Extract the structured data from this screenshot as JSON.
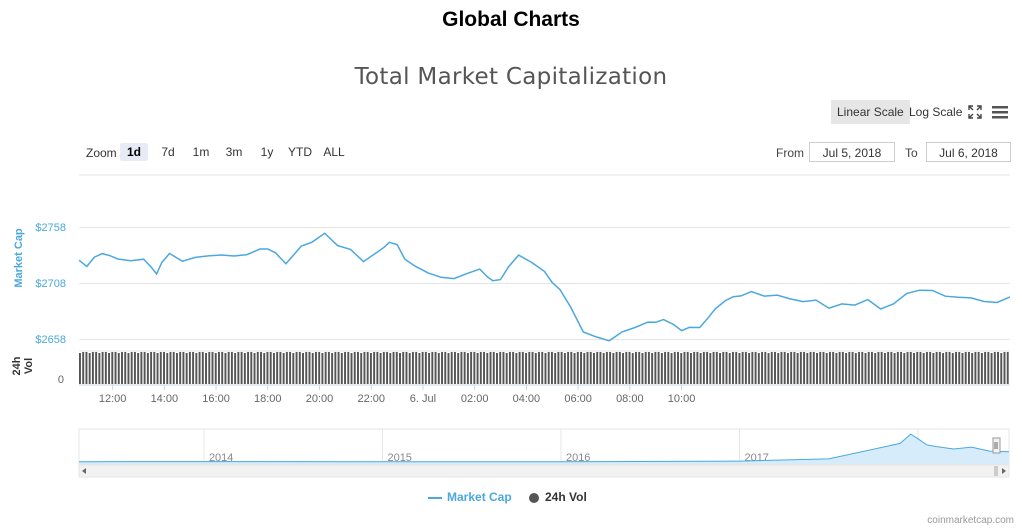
{
  "page_title": "Global Charts",
  "chart_title": "Total Market Capitalization",
  "scale": {
    "linear": "Linear Scale",
    "log": "Log Scale",
    "active": "linear"
  },
  "zoom": {
    "label": "Zoom",
    "options": [
      "1d",
      "7d",
      "1m",
      "3m",
      "1y",
      "YTD",
      "ALL"
    ],
    "active": "1d"
  },
  "range": {
    "from_label": "From",
    "from_value": "Jul 5, 2018",
    "to_label": "To",
    "to_value": "Jul 6, 2018"
  },
  "legend": {
    "market_cap": "Market Cap",
    "vol": "24h Vol"
  },
  "credit": "coinmarketcap.com",
  "colors": {
    "series": "#4ba8df",
    "volume": "#555555",
    "active_zoom_bg": "#e6ebf5",
    "scale_active_bg": "#e6e6e6"
  },
  "icons": [
    "fullscreen-icon",
    "hamburger-menu-icon"
  ],
  "chart_data": {
    "type": "line",
    "x_tick_labels": [
      "12:00",
      "14:00",
      "16:00",
      "18:00",
      "20:00",
      "22:00",
      "6. Jul",
      "02:00",
      "04:00",
      "06:00",
      "08:00",
      "10:00"
    ],
    "series": [
      {
        "name": "Market Cap",
        "y_axis_label": "Market Cap",
        "y_tick_labels": [
          "$2658",
          "$2708",
          "$2758"
        ],
        "ylim": [
          2658,
          2758
        ],
        "x_hours": [
          0,
          0.3,
          0.6,
          0.9,
          1.2,
          1.5,
          2.0,
          2.5,
          2.8,
          3.0,
          3.2,
          3.5,
          4.0,
          4.5,
          5.0,
          5.5,
          6.0,
          6.5,
          7.0,
          7.3,
          7.6,
          8.0,
          8.3,
          8.6,
          9.0,
          9.5,
          10.0,
          10.5,
          11.0,
          11.5,
          11.8,
          12.0,
          12.3,
          12.6,
          13.0,
          13.5,
          14.0,
          14.5,
          15.0,
          15.5,
          15.8,
          16.0,
          16.3,
          16.6,
          17.0,
          17.5,
          18.0,
          18.3,
          18.6,
          19.0,
          19.5,
          20.0,
          20.5,
          21.0,
          21.5,
          22.0,
          22.3,
          22.6,
          23.0,
          23.3,
          23.6,
          24.0,
          24.3,
          24.6,
          25.0,
          25.3,
          25.6,
          26.0,
          26.5,
          27.0,
          27.5,
          28.0,
          28.5,
          29.0,
          29.5,
          30.0,
          30.5,
          31.0,
          31.5,
          32.0,
          32.5,
          33.0,
          33.5,
          34.0,
          34.5,
          35.0,
          35.5,
          36.0
        ],
        "values": [
          2731,
          2726,
          2733,
          2738,
          2734,
          2733,
          2730,
          2732,
          2725,
          2718,
          2730,
          2736,
          2731,
          2733,
          2735,
          2736,
          2734,
          2737,
          2740,
          2742,
          2737,
          2728,
          2736,
          2743,
          2748,
          2754,
          2745,
          2740,
          2730,
          2738,
          2742,
          2748,
          2744,
          2733,
          2725,
          2720,
          2716,
          2714,
          2720,
          2722,
          2717,
          2712,
          2714,
          2725,
          2735,
          2730,
          2720,
          2712,
          2704,
          2690,
          2667,
          2662,
          2660,
          2666,
          2672,
          2675,
          2676,
          2678,
          2673,
          2669,
          2670,
          2672,
          2678,
          2688,
          2695,
          2698,
          2700,
          2702,
          2700,
          2699,
          2697,
          2694,
          2695,
          2689,
          2691,
          2692,
          2695,
          2688,
          2692,
          2701,
          2705,
          2703,
          2700,
          2697,
          2698,
          2694,
          2693,
          2699
        ]
      },
      {
        "name": "24h Vol",
        "y_axis_label": "24h Vol",
        "y_tick_labels": [
          "0"
        ],
        "bars": 288
      }
    ],
    "navigator": {
      "x_labels": [
        "2014",
        "2015",
        "2016",
        "2017",
        "2018"
      ],
      "x_years": [
        2013.3,
        2014.0,
        2015.0,
        2016.0,
        2017.0,
        2017.5,
        2017.9,
        2017.96,
        2018.0,
        2018.05,
        2018.1,
        2018.2,
        2018.3,
        2018.4,
        2018.51
      ],
      "values": [
        0.01,
        0.012,
        0.01,
        0.011,
        0.03,
        0.1,
        0.6,
        0.9,
        0.75,
        0.55,
        0.5,
        0.42,
        0.48,
        0.35,
        0.33
      ]
    }
  }
}
